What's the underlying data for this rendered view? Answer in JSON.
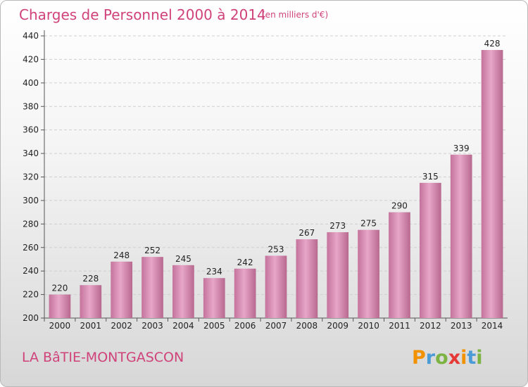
{
  "header": {
    "title": "Charges de Personnel 2000 à 2014",
    "subtitle": "(en milliers d'€)"
  },
  "place_name": "LA BâTIE-MONTGASCON",
  "brand": {
    "letters": [
      "P",
      "r",
      "o",
      "x",
      "i",
      "t",
      "i"
    ],
    "colors": [
      "#f39200",
      "#4a9bd6",
      "#7cb342",
      "#e53935",
      "#f39200",
      "#4a9bd6",
      "#7cb342"
    ]
  },
  "chart_data": {
    "type": "bar",
    "categories": [
      "2000",
      "2001",
      "2002",
      "2003",
      "2004",
      "2005",
      "2006",
      "2007",
      "2008",
      "2009",
      "2010",
      "2011",
      "2012",
      "2013",
      "2014"
    ],
    "values": [
      220,
      228,
      248,
      252,
      245,
      234,
      242,
      253,
      267,
      273,
      275,
      290,
      315,
      339,
      428
    ],
    "title": "Charges de Personnel 2000 à 2014",
    "ylim": [
      200,
      440
    ],
    "yticks": [
      200,
      220,
      240,
      260,
      280,
      300,
      320,
      340,
      360,
      380,
      400,
      420,
      440
    ],
    "grid": true,
    "bar_color": "#d987b0"
  }
}
